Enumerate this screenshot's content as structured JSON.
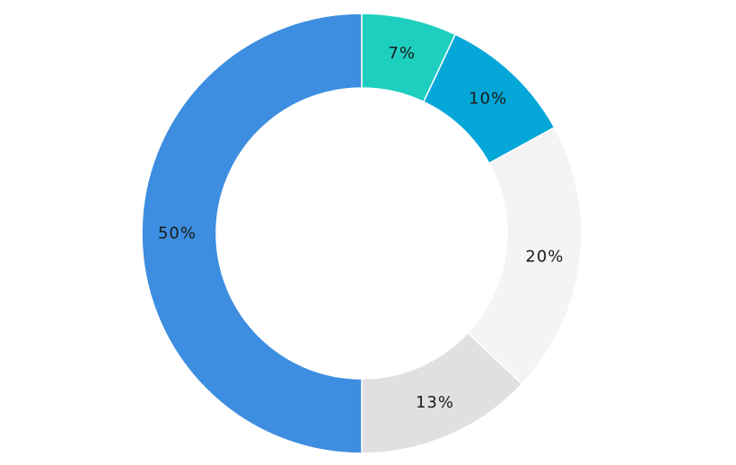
{
  "chart_data": {
    "type": "pie",
    "variant": "donut",
    "title": "",
    "legend": "none",
    "slices": [
      {
        "value": 7,
        "label": "7%",
        "color": "#1ecfbf"
      },
      {
        "value": 10,
        "label": "10%",
        "color": "#04a7d8"
      },
      {
        "value": 20,
        "label": "20%",
        "color": "#f4f4f4"
      },
      {
        "value": 13,
        "label": "13%",
        "color": "#e0e0e0"
      },
      {
        "value": 50,
        "label": "50%",
        "color": "#3d8ee0"
      }
    ]
  }
}
